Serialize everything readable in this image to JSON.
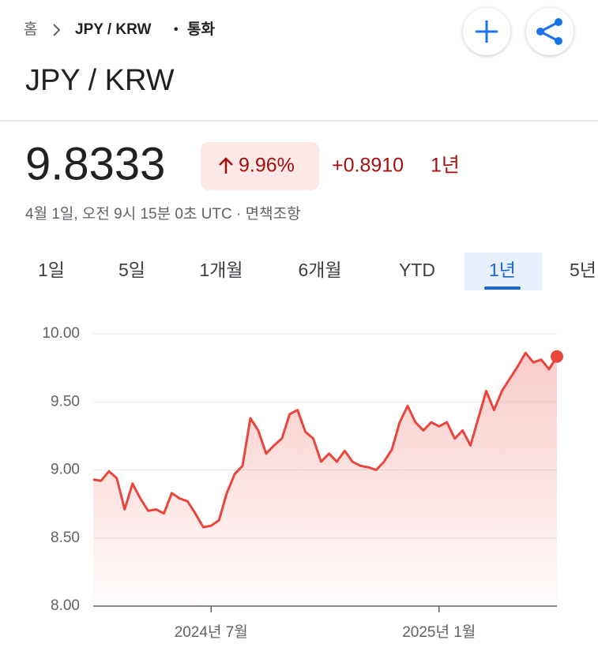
{
  "header": {
    "home": "홈",
    "breadcrumb": "JPY / KRW",
    "separator": "•",
    "category": "통화",
    "title": "JPY / KRW"
  },
  "quote": {
    "price": "9.8333",
    "change_percent": "9.96%",
    "change": "+0.8910",
    "period": "1년",
    "timestamp": "4월 1일, 오전 9시 15분 0초 UTC · 면책조항"
  },
  "tabs": {
    "items": [
      "1일",
      "5일",
      "1개월",
      "6개월",
      "YTD",
      "1년",
      "5년"
    ],
    "selected": 5
  },
  "chart_data": {
    "type": "line",
    "color": "#e8453c",
    "grid": true,
    "ylim": [
      8,
      10
    ],
    "yticks": [
      {
        "value": 8,
        "label": "8.00"
      },
      {
        "value": 8.5,
        "label": "8.50"
      },
      {
        "value": 9,
        "label": "9.00"
      },
      {
        "value": 9.5,
        "label": "9.50"
      },
      {
        "value": 10,
        "label": "10.00"
      }
    ],
    "categories": [
      null,
      null,
      null,
      null,
      null,
      null,
      null,
      null,
      null,
      null,
      null,
      null,
      null,
      null,
      null,
      "2024년 7월",
      null,
      null,
      null,
      null,
      null,
      null,
      null,
      null,
      null,
      null,
      null,
      null,
      null,
      null,
      null,
      null,
      null,
      null,
      null,
      null,
      null,
      null,
      null,
      null,
      null,
      null,
      null,
      null,
      "2025년 1월",
      null,
      null,
      null,
      null,
      null,
      null,
      null,
      null,
      null,
      null,
      null,
      null,
      null,
      null,
      null
    ],
    "values": [
      8.93,
      8.92,
      8.99,
      8.94,
      8.71,
      8.9,
      8.79,
      8.7,
      8.71,
      8.68,
      8.83,
      8.79,
      8.77,
      8.68,
      8.58,
      8.59,
      8.63,
      8.83,
      8.97,
      9.03,
      9.38,
      9.29,
      9.12,
      9.18,
      9.23,
      9.41,
      9.44,
      9.28,
      9.23,
      9.06,
      9.12,
      9.06,
      9.14,
      9.06,
      9.03,
      9.02,
      9.0,
      9.06,
      9.15,
      9.35,
      9.47,
      9.35,
      9.29,
      9.35,
      9.32,
      9.35,
      9.23,
      9.29,
      9.18,
      9.38,
      9.58,
      9.44,
      9.58,
      9.67,
      9.76,
      9.86,
      9.79,
      9.81,
      9.74,
      9.8333
    ]
  }
}
